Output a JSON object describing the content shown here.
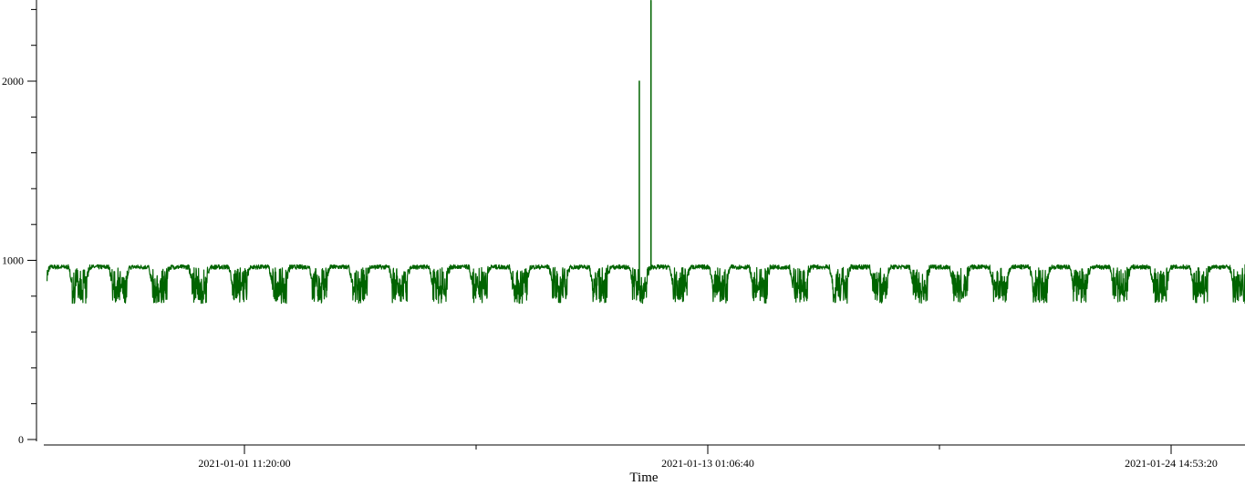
{
  "chart_data": {
    "type": "line",
    "xlabel": "Time",
    "ylabel": "",
    "x_range": [
      "2020-12-27 13:00:00",
      "2021-01-28 00:00:00"
    ],
    "ylim": [
      0,
      2450
    ],
    "y_ticks": [
      0,
      1000,
      2000
    ],
    "y_minor_ticks": [
      200,
      400,
      600,
      800,
      1200,
      1400,
      1600,
      1800,
      2200,
      2400
    ],
    "x_ticks": [
      "2021-01-01 11:20:00",
      "2021-01-13 01:06:40",
      "2021-01-24 14:53:20"
    ],
    "x_minor_ticks": [
      "2021-01-07 06:13:20",
      "2021-01-18 20:00:00"
    ],
    "series_color": "#006400",
    "daily_pattern": {
      "day_level_range": [
        920,
        975
      ],
      "night_level_range": [
        760,
        900
      ],
      "period_hours": 24
    },
    "spikes": [
      {
        "x": "2021-01-11 08:00:00",
        "y": 2000
      },
      {
        "x": "2021-01-11 15:00:00",
        "y": 2450
      }
    ]
  }
}
